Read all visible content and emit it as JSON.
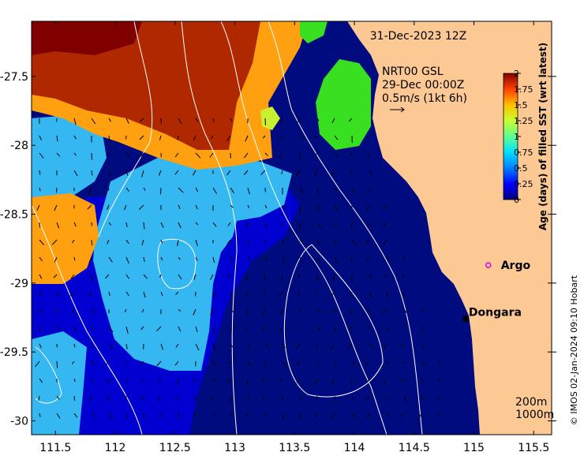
{
  "map": {
    "date_label": "31-Dec-2023 12Z",
    "velocity": {
      "line1": "NRT00 GSL",
      "line2": "29-Dec 00:00Z",
      "line3": "0.5m/s (1kt 6h)"
    },
    "places": [
      {
        "name": "Argo",
        "lon": 115.12,
        "lat": -28.87,
        "marker": "ring",
        "color": "#e000e0"
      },
      {
        "name": "Dongara",
        "lon": 114.93,
        "lat": -29.26,
        "marker": "dot",
        "color": "#000000"
      }
    ],
    "contour_labels": {
      "shallow": "200m",
      "deep": "1000m"
    },
    "x_ticks": [
      "111.5",
      "112",
      "112.5",
      "113",
      "113.5",
      "114",
      "114.5",
      "115",
      "115.5"
    ],
    "y_ticks": [
      "-27.5",
      "-28",
      "-28.5",
      "-29",
      "-29.5",
      "-30"
    ],
    "lon_range": [
      111.3,
      115.65
    ],
    "lat_range": [
      -30.1,
      -27.1
    ],
    "colorbar": {
      "label": "Age (days) of filled SST (wrt latest)",
      "ticks": [
        "2",
        "1.75",
        "1.5",
        "1.25",
        "1",
        "0.75",
        "0.5",
        "0.25",
        "0"
      ],
      "range": [
        0,
        2
      ]
    },
    "copyright": "© IMOS 02-Jan-2024 09:10 Hobart",
    "colors": {
      "land": "#fcc894",
      "ocean_deep": "#000b80",
      "ocean_mid": "#0000c8"
    }
  }
}
